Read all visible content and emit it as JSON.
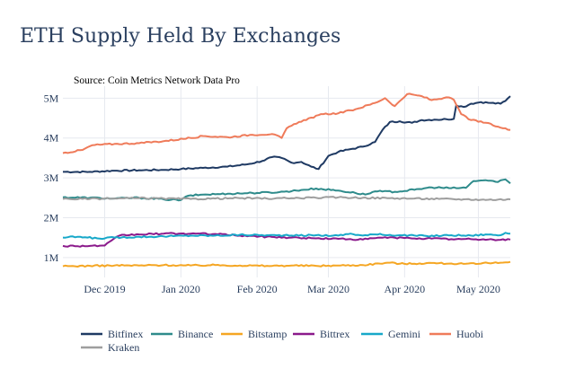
{
  "chart_data": {
    "type": "line",
    "title": "ETH Supply Held By Exchanges",
    "annotation": "Source: Coin Metrics Network Data Pro",
    "x_start": "2019-11-14",
    "x_end": "2020-05-14",
    "x_ticks": [
      {
        "date": "2019-12-01",
        "label": "Dec 2019"
      },
      {
        "date": "2020-01-01",
        "label": "Jan 2020"
      },
      {
        "date": "2020-02-01",
        "label": "Feb 2020"
      },
      {
        "date": "2020-03-01",
        "label": "Mar 2020"
      },
      {
        "date": "2020-04-01",
        "label": "Apr 2020"
      },
      {
        "date": "2020-05-01",
        "label": "May 2020"
      }
    ],
    "ylim": [
      0.5,
      5.3
    ],
    "y_ticks": [
      {
        "value": 1,
        "label": "1M"
      },
      {
        "value": 2,
        "label": "2M"
      },
      {
        "value": 3,
        "label": "3M"
      },
      {
        "value": 4,
        "label": "4M"
      },
      {
        "value": 5,
        "label": "5M"
      }
    ],
    "grid": true,
    "legend_position": "bottom",
    "series": [
      {
        "name": "Bitfinex",
        "color": "#1f3a63",
        "points": [
          [
            "2019-11-14",
            3.15
          ],
          [
            "2019-11-25",
            3.15
          ],
          [
            "2019-12-05",
            3.18
          ],
          [
            "2019-12-15",
            3.19
          ],
          [
            "2019-12-25",
            3.2
          ],
          [
            "2020-01-01",
            3.22
          ],
          [
            "2020-01-10",
            3.25
          ],
          [
            "2020-01-20",
            3.28
          ],
          [
            "2020-01-28",
            3.34
          ],
          [
            "2020-02-03",
            3.42
          ],
          [
            "2020-02-07",
            3.52
          ],
          [
            "2020-02-11",
            3.5
          ],
          [
            "2020-02-15",
            3.38
          ],
          [
            "2020-02-19",
            3.4
          ],
          [
            "2020-02-23",
            3.28
          ],
          [
            "2020-02-26",
            3.22
          ],
          [
            "2020-03-01",
            3.55
          ],
          [
            "2020-03-05",
            3.65
          ],
          [
            "2020-03-10",
            3.72
          ],
          [
            "2020-03-15",
            3.78
          ],
          [
            "2020-03-20",
            3.9
          ],
          [
            "2020-03-23",
            4.2
          ],
          [
            "2020-03-26",
            4.4
          ],
          [
            "2020-03-30",
            4.42
          ],
          [
            "2020-04-04",
            4.38
          ],
          [
            "2020-04-08",
            4.45
          ],
          [
            "2020-04-13",
            4.46
          ],
          [
            "2020-04-18",
            4.47
          ],
          [
            "2020-04-21",
            4.48
          ],
          [
            "2020-04-22",
            4.82
          ],
          [
            "2020-04-25",
            4.78
          ],
          [
            "2020-04-28",
            4.86
          ],
          [
            "2020-05-02",
            4.9
          ],
          [
            "2020-05-06",
            4.88
          ],
          [
            "2020-05-10",
            4.86
          ],
          [
            "2020-05-12",
            4.93
          ],
          [
            "2020-05-14",
            5.05
          ]
        ]
      },
      {
        "name": "Binance",
        "color": "#2e8b8b",
        "points": [
          [
            "2019-11-14",
            2.51
          ],
          [
            "2019-11-25",
            2.5
          ],
          [
            "2019-12-05",
            2.48
          ],
          [
            "2019-12-15",
            2.5
          ],
          [
            "2019-12-25",
            2.46
          ],
          [
            "2020-01-01",
            2.44
          ],
          [
            "2020-01-04",
            2.55
          ],
          [
            "2020-01-10",
            2.58
          ],
          [
            "2020-01-20",
            2.6
          ],
          [
            "2020-01-30",
            2.62
          ],
          [
            "2020-02-10",
            2.64
          ],
          [
            "2020-02-20",
            2.7
          ],
          [
            "2020-02-25",
            2.73
          ],
          [
            "2020-03-05",
            2.68
          ],
          [
            "2020-03-12",
            2.62
          ],
          [
            "2020-03-16",
            2.58
          ],
          [
            "2020-03-20",
            2.66
          ],
          [
            "2020-03-28",
            2.65
          ],
          [
            "2020-04-05",
            2.7
          ],
          [
            "2020-04-12",
            2.76
          ],
          [
            "2020-04-20",
            2.74
          ],
          [
            "2020-04-26",
            2.75
          ],
          [
            "2020-04-29",
            2.92
          ],
          [
            "2020-05-04",
            2.94
          ],
          [
            "2020-05-08",
            2.9
          ],
          [
            "2020-05-12",
            2.96
          ],
          [
            "2020-05-14",
            2.86
          ]
        ]
      },
      {
        "name": "Bitstamp",
        "color": "#f5a623",
        "points": [
          [
            "2019-11-14",
            0.78
          ],
          [
            "2019-11-25",
            0.79
          ],
          [
            "2019-12-05",
            0.8
          ],
          [
            "2019-12-15",
            0.8
          ],
          [
            "2019-12-25",
            0.81
          ],
          [
            "2020-01-05",
            0.8
          ],
          [
            "2020-01-15",
            0.81
          ],
          [
            "2020-01-25",
            0.8
          ],
          [
            "2020-02-05",
            0.79
          ],
          [
            "2020-02-15",
            0.8
          ],
          [
            "2020-02-25",
            0.79
          ],
          [
            "2020-03-05",
            0.8
          ],
          [
            "2020-03-15",
            0.81
          ],
          [
            "2020-03-25",
            0.87
          ],
          [
            "2020-04-01",
            0.84
          ],
          [
            "2020-04-10",
            0.86
          ],
          [
            "2020-04-20",
            0.85
          ],
          [
            "2020-04-25",
            0.84
          ],
          [
            "2020-05-01",
            0.84
          ],
          [
            "2020-05-05",
            0.86
          ],
          [
            "2020-05-10",
            0.87
          ],
          [
            "2020-05-14",
            0.89
          ]
        ]
      },
      {
        "name": "Bittrex",
        "color": "#8b1a8b",
        "points": [
          [
            "2019-11-14",
            1.29
          ],
          [
            "2019-11-25",
            1.29
          ],
          [
            "2019-12-01",
            1.3
          ],
          [
            "2019-12-07",
            1.55
          ],
          [
            "2019-12-15",
            1.58
          ],
          [
            "2019-12-25",
            1.6
          ],
          [
            "2020-01-05",
            1.6
          ],
          [
            "2020-01-15",
            1.59
          ],
          [
            "2020-01-25",
            1.55
          ],
          [
            "2020-02-05",
            1.52
          ],
          [
            "2020-02-15",
            1.5
          ],
          [
            "2020-02-25",
            1.48
          ],
          [
            "2020-03-05",
            1.47
          ],
          [
            "2020-03-15",
            1.45
          ],
          [
            "2020-03-22",
            1.5
          ],
          [
            "2020-04-01",
            1.49
          ],
          [
            "2020-04-10",
            1.48
          ],
          [
            "2020-04-20",
            1.46
          ],
          [
            "2020-04-28",
            1.46
          ],
          [
            "2020-05-05",
            1.45
          ],
          [
            "2020-05-14",
            1.45
          ]
        ]
      },
      {
        "name": "Gemini",
        "color": "#17a8c9",
        "points": [
          [
            "2019-11-14",
            1.5
          ],
          [
            "2019-11-20",
            1.52
          ],
          [
            "2019-11-28",
            1.48
          ],
          [
            "2019-12-05",
            1.5
          ],
          [
            "2019-12-15",
            1.52
          ],
          [
            "2019-12-25",
            1.53
          ],
          [
            "2020-01-05",
            1.55
          ],
          [
            "2020-01-15",
            1.55
          ],
          [
            "2020-01-25",
            1.57
          ],
          [
            "2020-02-05",
            1.56
          ],
          [
            "2020-02-15",
            1.55
          ],
          [
            "2020-02-25",
            1.56
          ],
          [
            "2020-03-05",
            1.55
          ],
          [
            "2020-03-10",
            1.6
          ],
          [
            "2020-03-15",
            1.55
          ],
          [
            "2020-03-20",
            1.58
          ],
          [
            "2020-03-30",
            1.56
          ],
          [
            "2020-04-10",
            1.54
          ],
          [
            "2020-04-20",
            1.56
          ],
          [
            "2020-04-28",
            1.55
          ],
          [
            "2020-05-04",
            1.58
          ],
          [
            "2020-05-10",
            1.56
          ],
          [
            "2020-05-12",
            1.62
          ],
          [
            "2020-05-14",
            1.6
          ]
        ]
      },
      {
        "name": "Huobi",
        "color": "#ef7b5a",
        "points": [
          [
            "2019-11-14",
            3.62
          ],
          [
            "2019-11-22",
            3.7
          ],
          [
            "2019-11-26",
            3.82
          ],
          [
            "2019-12-05",
            3.85
          ],
          [
            "2019-12-15",
            3.87
          ],
          [
            "2019-12-25",
            3.92
          ],
          [
            "2020-01-05",
            4.0
          ],
          [
            "2020-01-10",
            4.05
          ],
          [
            "2020-01-20",
            4.02
          ],
          [
            "2020-01-30",
            4.08
          ],
          [
            "2020-02-07",
            4.1
          ],
          [
            "2020-02-11",
            4.0
          ],
          [
            "2020-02-13",
            4.24
          ],
          [
            "2020-02-20",
            4.45
          ],
          [
            "2020-02-28",
            4.6
          ],
          [
            "2020-03-05",
            4.62
          ],
          [
            "2020-03-12",
            4.72
          ],
          [
            "2020-03-20",
            4.88
          ],
          [
            "2020-03-24",
            5.0
          ],
          [
            "2020-03-28",
            4.8
          ],
          [
            "2020-04-02",
            5.1
          ],
          [
            "2020-04-08",
            5.05
          ],
          [
            "2020-04-12",
            4.95
          ],
          [
            "2020-04-18",
            5.02
          ],
          [
            "2020-04-21",
            4.96
          ],
          [
            "2020-04-24",
            4.6
          ],
          [
            "2020-04-28",
            4.45
          ],
          [
            "2020-05-04",
            4.38
          ],
          [
            "2020-05-10",
            4.26
          ],
          [
            "2020-05-14",
            4.2
          ]
        ]
      },
      {
        "name": "Kraken",
        "color": "#9e9e9e",
        "points": [
          [
            "2019-11-14",
            2.47
          ],
          [
            "2019-11-25",
            2.47
          ],
          [
            "2019-12-05",
            2.48
          ],
          [
            "2019-12-15",
            2.49
          ],
          [
            "2019-12-25",
            2.48
          ],
          [
            "2020-01-05",
            2.47
          ],
          [
            "2020-01-15",
            2.48
          ],
          [
            "2020-01-25",
            2.49
          ],
          [
            "2020-02-05",
            2.48
          ],
          [
            "2020-02-15",
            2.49
          ],
          [
            "2020-02-25",
            2.5
          ],
          [
            "2020-03-05",
            2.51
          ],
          [
            "2020-03-15",
            2.5
          ],
          [
            "2020-03-25",
            2.49
          ],
          [
            "2020-04-05",
            2.48
          ],
          [
            "2020-04-15",
            2.47
          ],
          [
            "2020-04-25",
            2.46
          ],
          [
            "2020-05-05",
            2.45
          ],
          [
            "2020-05-14",
            2.46
          ]
        ]
      }
    ]
  }
}
